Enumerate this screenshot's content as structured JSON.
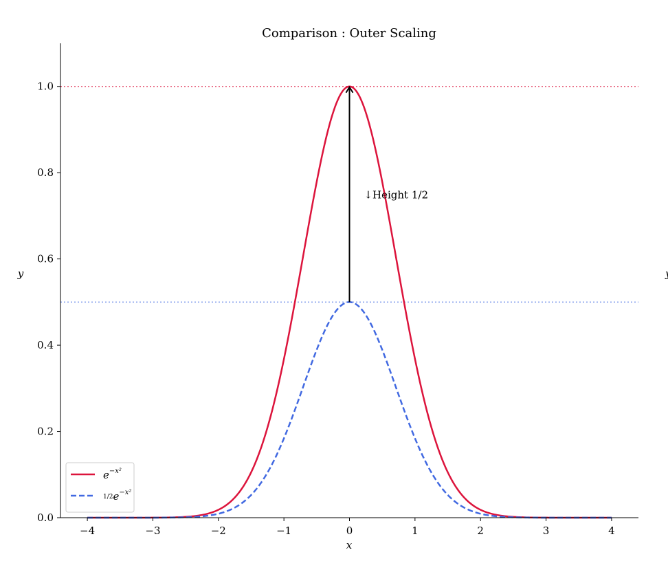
{
  "chart_data": {
    "type": "line",
    "title": "Comparison : Outer Scaling",
    "xlabel": "x",
    "ylabel": "y",
    "ylabel_right": "y",
    "xlim": [
      -4.41,
      4.41
    ],
    "ylim": [
      0,
      1.1
    ],
    "x_range": [
      -4,
      4
    ],
    "samples": 400,
    "xticks": [
      -4,
      -3,
      -2,
      -1,
      0,
      1,
      2,
      3,
      4
    ],
    "xtick_labels": [
      "−4",
      "−3",
      "−2",
      "−1",
      "0",
      "1",
      "2",
      "3",
      "4"
    ],
    "yticks": [
      0,
      0.2,
      0.4,
      0.6,
      0.8,
      1.0
    ],
    "ytick_labels": [
      "0.0",
      "0.2",
      "0.4",
      "0.6",
      "0.8",
      "1.0"
    ],
    "grid": false,
    "legend_position": "lower-left",
    "series": [
      {
        "name": "e^{-x^2}",
        "label_main": "e",
        "label_sup": "−x²",
        "amplitude": 1.0,
        "color": "#dc143c",
        "style": "solid",
        "key_points": {
          "x": [
            -2,
            -1,
            0,
            1,
            2
          ],
          "y": [
            0.018,
            0.368,
            1.0,
            0.368,
            0.018
          ]
        }
      },
      {
        "name": "1/2 e^{-x^2}",
        "label_frac": "1/2",
        "label_main": "e",
        "label_sup": "−x²",
        "amplitude": 0.5,
        "color": "#4169e1",
        "style": "dashed",
        "key_points": {
          "x": [
            -2,
            -1,
            0,
            1,
            2
          ],
          "y": [
            0.009,
            0.184,
            0.5,
            0.184,
            0.009
          ]
        }
      }
    ],
    "hlines": [
      {
        "y": 1.0,
        "color": "#dc143c",
        "style": "dotted"
      },
      {
        "y": 0.5,
        "color": "#4169e1",
        "style": "dotted"
      }
    ],
    "annotation": {
      "text": "↓Height 1/2",
      "text_x": 0.22,
      "text_y": 0.75,
      "arrow_from": [
        0,
        0.5
      ],
      "arrow_to": [
        0,
        1.0
      ]
    }
  }
}
